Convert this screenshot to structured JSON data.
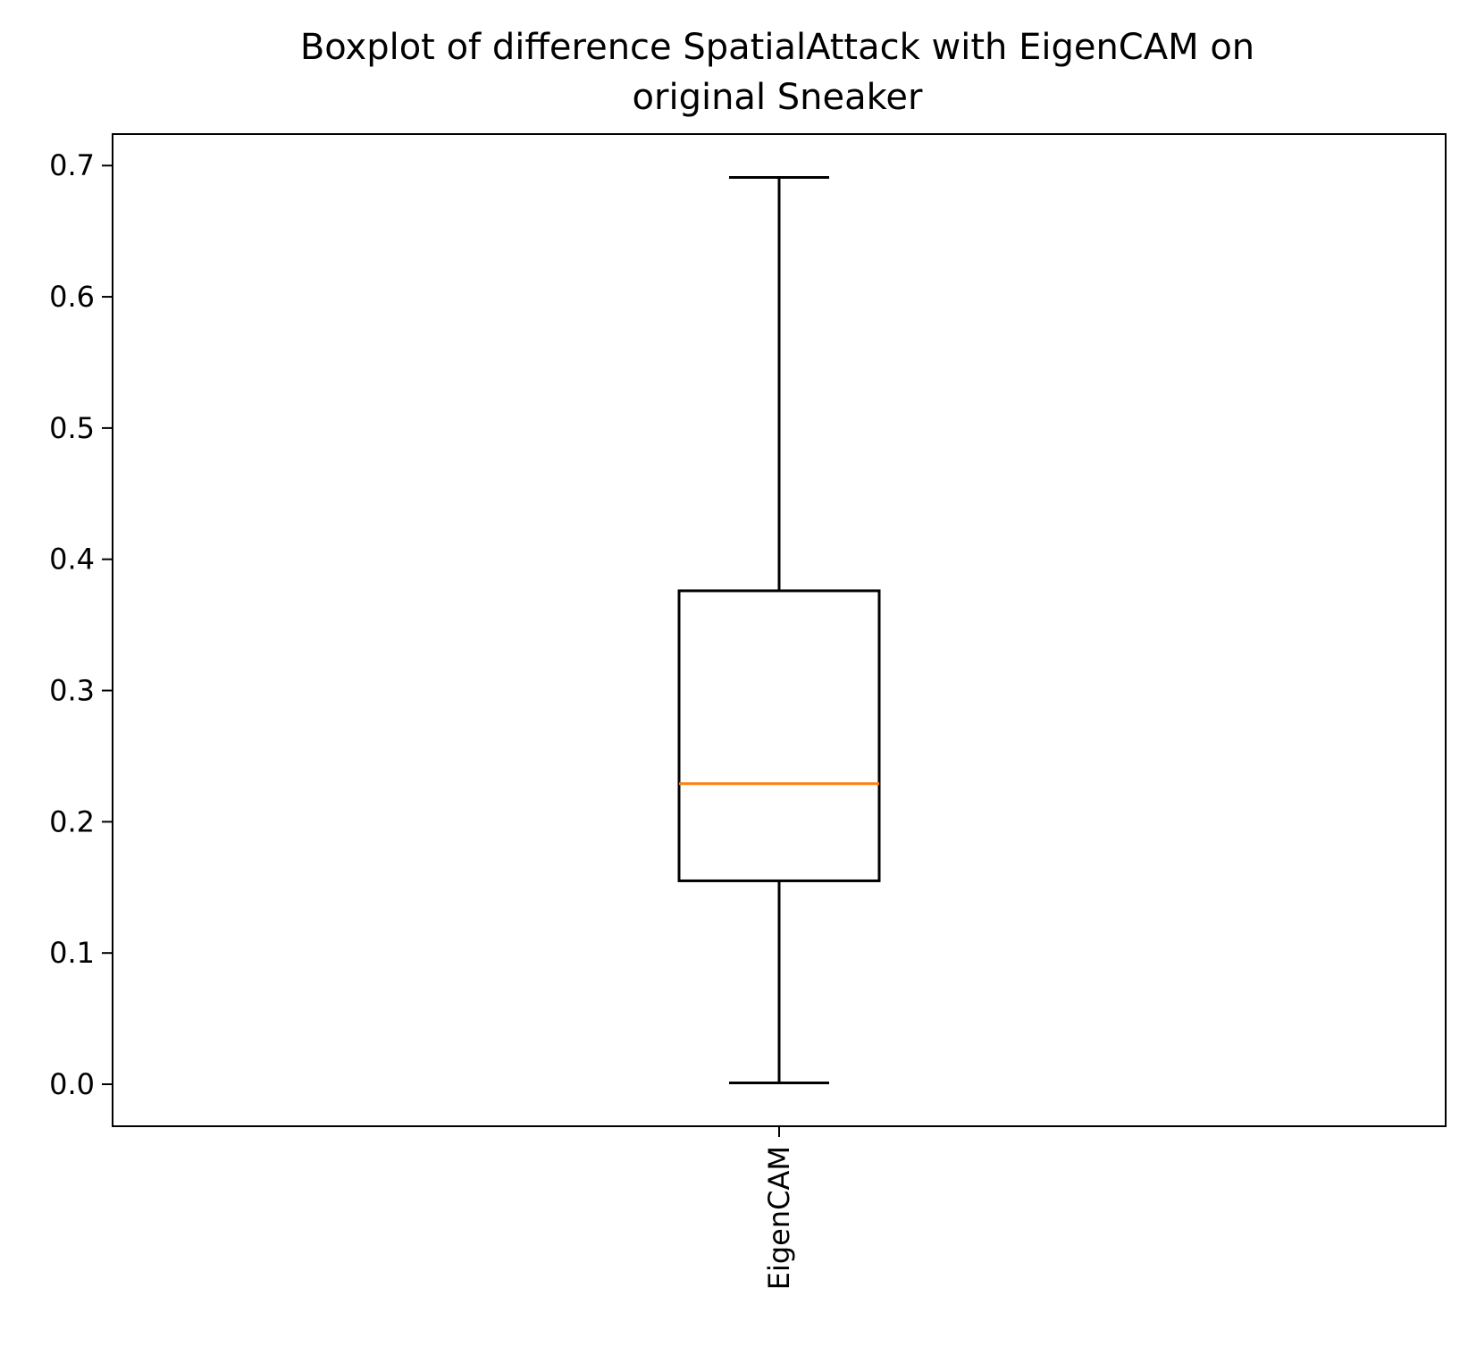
{
  "chart_data": {
    "type": "box",
    "title": "Boxplot of difference SpatialAttack with EigenCAM on original Sneaker",
    "title_lines": [
      "Boxplot of difference SpatialAttack with EigenCAM on",
      "original Sneaker"
    ],
    "xlabel": "",
    "ylabel": "",
    "categories": [
      "EigenCAM"
    ],
    "boxes": [
      {
        "label": "EigenCAM",
        "whisker_low": 0.001,
        "q1": 0.155,
        "median": 0.229,
        "q3": 0.376,
        "whisker_high": 0.691
      }
    ],
    "ylim": [
      -0.032,
      0.724
    ],
    "yticks": [
      0.0,
      0.1,
      0.2,
      0.3,
      0.4,
      0.5,
      0.6,
      0.7
    ],
    "ytick_labels": [
      "0.0",
      "0.1",
      "0.2",
      "0.3",
      "0.4",
      "0.5",
      "0.6",
      "0.7"
    ],
    "grid": false,
    "colors": {
      "box": "#000000",
      "median": "#ff7f0e",
      "whisker": "#000000"
    }
  }
}
